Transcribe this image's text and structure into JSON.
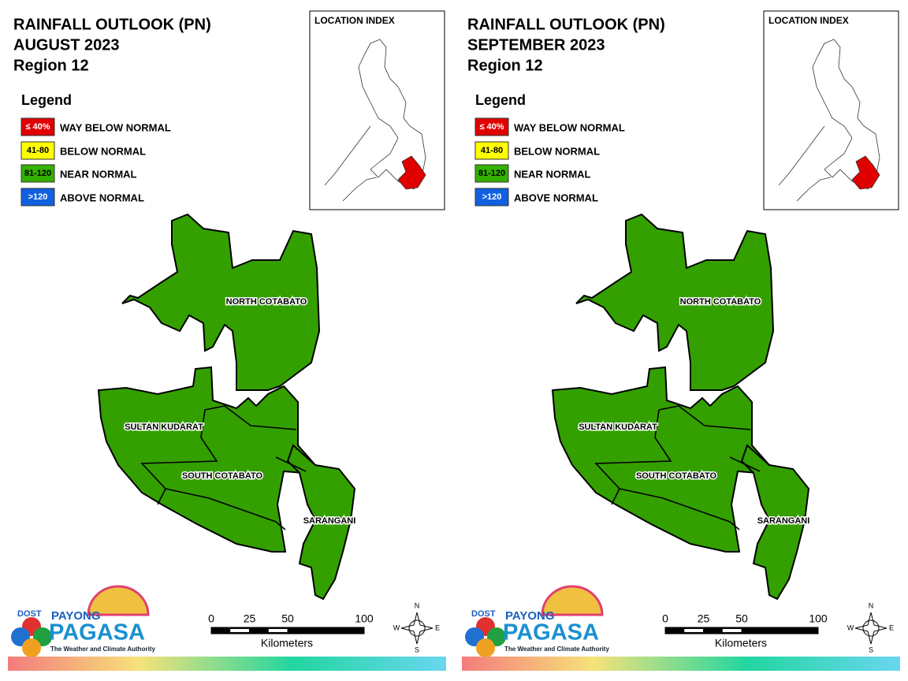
{
  "panels": [
    {
      "title": [
        "RAINFALL OUTLOOK (PN)",
        "AUGUST 2023",
        "Region 12"
      ],
      "legend": {
        "title": "Legend",
        "items": [
          {
            "code": "≤ 40%",
            "label": "WAY BELOW NORMAL",
            "color": "#e00000",
            "text_color": "#ffffff"
          },
          {
            "code": "41-80",
            "label": "BELOW NORMAL",
            "color": "#ffff00",
            "text_color": "#000000"
          },
          {
            "code": "81-120",
            "label": "NEAR NORMAL",
            "color": "#33b000",
            "text_color": "#000000"
          },
          {
            "code": ">120",
            "label": "ABOVE NORMAL",
            "color": "#1060e0",
            "text_color": "#ffffff"
          }
        ]
      },
      "inset_title": "LOCATION INDEX",
      "provinces": [
        {
          "name": "NORTH COTABATO",
          "color": "#33a000"
        },
        {
          "name": "SULTAN KUDARAT",
          "color": "#33a000"
        },
        {
          "name": "SOUTH COTABATO",
          "color": "#33a000"
        },
        {
          "name": "SARANGANI",
          "color": "#33a000"
        }
      ],
      "scale_bar": {
        "ticks": [
          0,
          25,
          50,
          100
        ],
        "unit": "Kilometers"
      },
      "compass": [
        "N",
        "E",
        "S",
        "W"
      ],
      "logo": {
        "org": "DOST",
        "line1": "PAYONG",
        "line2": "PAGASA",
        "tagline": "The Weather and Climate Authority"
      }
    },
    {
      "title": [
        "RAINFALL OUTLOOK (PN)",
        "SEPTEMBER 2023",
        "Region 12"
      ],
      "legend": {
        "title": "Legend",
        "items": [
          {
            "code": "≤ 40%",
            "label": "WAY BELOW NORMAL",
            "color": "#e00000",
            "text_color": "#ffffff"
          },
          {
            "code": "41-80",
            "label": "BELOW NORMAL",
            "color": "#ffff00",
            "text_color": "#000000"
          },
          {
            "code": "81-120",
            "label": "NEAR NORMAL",
            "color": "#33b000",
            "text_color": "#000000"
          },
          {
            "code": ">120",
            "label": "ABOVE NORMAL",
            "color": "#1060e0",
            "text_color": "#ffffff"
          }
        ]
      },
      "inset_title": "LOCATION INDEX",
      "provinces": [
        {
          "name": "NORTH COTABATO",
          "color": "#33a000"
        },
        {
          "name": "SULTAN KUDARAT",
          "color": "#33a000"
        },
        {
          "name": "SOUTH COTABATO",
          "color": "#33a000"
        },
        {
          "name": "SARANGANI",
          "color": "#33a000"
        }
      ],
      "scale_bar": {
        "ticks": [
          0,
          25,
          50,
          100
        ],
        "unit": "Kilometers"
      },
      "compass": [
        "N",
        "E",
        "S",
        "W"
      ],
      "logo": {
        "org": "DOST",
        "line1": "PAYONG",
        "line2": "PAGASA",
        "tagline": "The Weather and Climate Authority"
      }
    }
  ]
}
